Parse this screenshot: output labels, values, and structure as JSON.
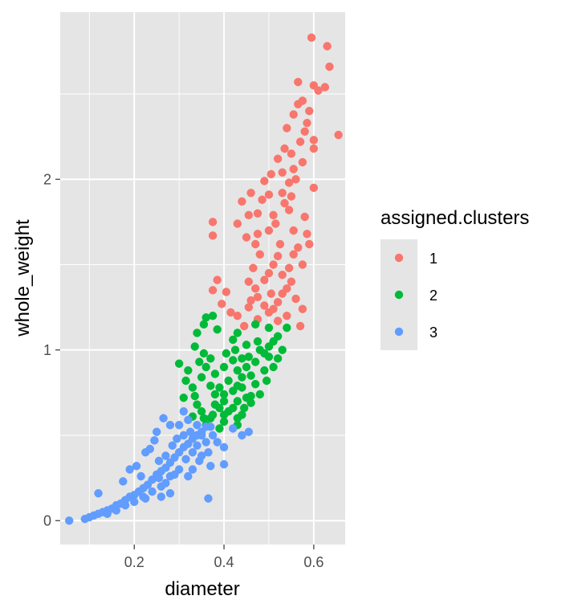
{
  "chart_data": {
    "type": "scatter",
    "xlabel": "diameter",
    "ylabel": "whole_weight",
    "xlim": [
      0.035,
      0.67
    ],
    "ylim": [
      -0.14,
      2.98
    ],
    "x_ticks": [
      0.2,
      0.4,
      0.6
    ],
    "x_tick_labels": [
      "0.2",
      "0.4",
      "0.6"
    ],
    "y_ticks": [
      0,
      1,
      2
    ],
    "y_tick_labels": [
      "0",
      "1",
      "2"
    ],
    "grid": true,
    "panel_background": "#E5E5E5",
    "legend": {
      "title": "assigned.clusters",
      "position": "right"
    },
    "series": [
      {
        "name": "1",
        "color": "#F8766D",
        "points": [
          [
            0.595,
            2.83
          ],
          [
            0.63,
            2.78
          ],
          [
            0.635,
            2.66
          ],
          [
            0.625,
            2.54
          ],
          [
            0.61,
            2.52
          ],
          [
            0.6,
            2.55
          ],
          [
            0.565,
            2.57
          ],
          [
            0.575,
            2.46
          ],
          [
            0.555,
            2.38
          ],
          [
            0.54,
            2.3
          ],
          [
            0.585,
            2.33
          ],
          [
            0.57,
            2.22
          ],
          [
            0.55,
            2.15
          ],
          [
            0.6,
            2.23
          ],
          [
            0.655,
            2.26
          ],
          [
            0.53,
            2.04
          ],
          [
            0.52,
            2.12
          ],
          [
            0.545,
            1.98
          ],
          [
            0.49,
            1.99
          ],
          [
            0.5,
            1.91
          ],
          [
            0.535,
            1.86
          ],
          [
            0.51,
            1.79
          ],
          [
            0.475,
            1.8
          ],
          [
            0.455,
            1.79
          ],
          [
            0.515,
            1.74
          ],
          [
            0.555,
            1.7
          ],
          [
            0.5,
            1.7
          ],
          [
            0.47,
            1.62
          ],
          [
            0.525,
            1.62
          ],
          [
            0.48,
            1.56
          ],
          [
            0.555,
            1.56
          ],
          [
            0.51,
            1.5
          ],
          [
            0.465,
            1.48
          ],
          [
            0.53,
            1.44
          ],
          [
            0.49,
            1.41
          ],
          [
            0.455,
            1.4
          ],
          [
            0.54,
            1.36
          ],
          [
            0.505,
            1.33
          ],
          [
            0.475,
            1.31
          ],
          [
            0.56,
            1.3
          ],
          [
            0.52,
            1.28
          ],
          [
            0.49,
            1.26
          ],
          [
            0.455,
            1.25
          ],
          [
            0.575,
            1.24
          ],
          [
            0.5,
            1.22
          ],
          [
            0.54,
            1.2
          ],
          [
            0.57,
            1.14
          ],
          [
            0.52,
            1.17
          ],
          [
            0.475,
            1.18
          ],
          [
            0.445,
            1.14
          ],
          [
            0.43,
            1.2
          ],
          [
            0.405,
            1.34
          ],
          [
            0.385,
            1.41
          ],
          [
            0.375,
            1.35
          ],
          [
            0.395,
            1.27
          ],
          [
            0.415,
            1.22
          ],
          [
            0.375,
            1.67
          ],
          [
            0.375,
            1.75
          ],
          [
            0.43,
            1.74
          ],
          [
            0.45,
            1.66
          ],
          [
            0.475,
            1.68
          ],
          [
            0.44,
            1.87
          ],
          [
            0.46,
            1.92
          ],
          [
            0.56,
            2.0
          ],
          [
            0.575,
            2.1
          ],
          [
            0.53,
            1.92
          ],
          [
            0.545,
            1.82
          ],
          [
            0.58,
            1.78
          ],
          [
            0.6,
            2.18
          ],
          [
            0.59,
            2.4
          ],
          [
            0.565,
            2.44
          ],
          [
            0.58,
            2.28
          ],
          [
            0.55,
            1.9
          ],
          [
            0.52,
            1.55
          ],
          [
            0.5,
            1.45
          ],
          [
            0.545,
            1.48
          ],
          [
            0.565,
            1.6
          ],
          [
            0.585,
            1.68
          ],
          [
            0.47,
            1.36
          ],
          [
            0.46,
            1.29
          ],
          [
            0.53,
            1.33
          ],
          [
            0.51,
            1.24
          ],
          [
            0.55,
            1.4
          ],
          [
            0.575,
            1.5
          ],
          [
            0.6,
            1.95
          ],
          [
            0.59,
            1.62
          ],
          [
            0.485,
            1.88
          ],
          [
            0.505,
            2.03
          ],
          [
            0.535,
            2.18
          ],
          [
            0.555,
            2.06
          ]
        ]
      },
      {
        "name": "2",
        "color": "#00BA38",
        "points": [
          [
            0.36,
            1.19
          ],
          [
            0.375,
            1.2
          ],
          [
            0.34,
            1.1
          ],
          [
            0.355,
            1.15
          ],
          [
            0.385,
            1.12
          ],
          [
            0.43,
            1.1
          ],
          [
            0.47,
            1.15
          ],
          [
            0.5,
            1.13
          ],
          [
            0.52,
            1.08
          ],
          [
            0.54,
            1.13
          ],
          [
            0.5,
            1.02
          ],
          [
            0.48,
            1.0
          ],
          [
            0.45,
            1.03
          ],
          [
            0.42,
            1.06
          ],
          [
            0.405,
            0.98
          ],
          [
            0.44,
            0.95
          ],
          [
            0.47,
            0.93
          ],
          [
            0.5,
            0.96
          ],
          [
            0.53,
            1.0
          ],
          [
            0.43,
            0.88
          ],
          [
            0.46,
            0.85
          ],
          [
            0.49,
            0.88
          ],
          [
            0.41,
            0.82
          ],
          [
            0.44,
            0.78
          ],
          [
            0.47,
            0.8
          ],
          [
            0.4,
            0.74
          ],
          [
            0.43,
            0.7
          ],
          [
            0.46,
            0.73
          ],
          [
            0.38,
            0.68
          ],
          [
            0.41,
            0.64
          ],
          [
            0.44,
            0.62
          ],
          [
            0.37,
            0.6
          ],
          [
            0.4,
            0.58
          ],
          [
            0.43,
            0.56
          ],
          [
            0.39,
            0.54
          ],
          [
            0.36,
            0.56
          ],
          [
            0.3,
            0.92
          ],
          [
            0.32,
            0.88
          ],
          [
            0.315,
            0.82
          ],
          [
            0.33,
            0.78
          ],
          [
            0.335,
            0.73
          ],
          [
            0.31,
            0.72
          ],
          [
            0.34,
            0.68
          ],
          [
            0.35,
            0.64
          ],
          [
            0.33,
            0.61
          ],
          [
            0.355,
            0.6
          ],
          [
            0.375,
            0.62
          ],
          [
            0.355,
            0.98
          ],
          [
            0.36,
            0.9
          ],
          [
            0.37,
            0.95
          ],
          [
            0.335,
            1.02
          ],
          [
            0.345,
            0.93
          ],
          [
            0.38,
            0.86
          ],
          [
            0.39,
            0.78
          ],
          [
            0.4,
            0.9
          ],
          [
            0.42,
            0.94
          ],
          [
            0.425,
            1.0
          ],
          [
            0.45,
            0.9
          ],
          [
            0.455,
            0.96
          ],
          [
            0.475,
            1.05
          ],
          [
            0.51,
            1.05
          ],
          [
            0.49,
            0.98
          ],
          [
            0.45,
            0.72
          ],
          [
            0.42,
            0.76
          ],
          [
            0.42,
            0.66
          ],
          [
            0.4,
            0.7
          ],
          [
            0.38,
            0.74
          ],
          [
            0.37,
            0.79
          ],
          [
            0.35,
            0.84
          ],
          [
            0.39,
            0.66
          ],
          [
            0.4,
            0.62
          ],
          [
            0.43,
            0.6
          ],
          [
            0.445,
            0.66
          ],
          [
            0.46,
            0.69
          ],
          [
            0.48,
            0.74
          ],
          [
            0.495,
            0.82
          ],
          [
            0.51,
            0.9
          ],
          [
            0.52,
            0.95
          ],
          [
            0.44,
            0.84
          ],
          [
            0.43,
            0.79
          ]
        ]
      },
      {
        "name": "3",
        "color": "#619CFF",
        "points": [
          [
            0.055,
            0.0
          ],
          [
            0.09,
            0.01
          ],
          [
            0.1,
            0.02
          ],
          [
            0.11,
            0.03
          ],
          [
            0.12,
            0.04
          ],
          [
            0.13,
            0.05
          ],
          [
            0.14,
            0.06
          ],
          [
            0.15,
            0.07
          ],
          [
            0.16,
            0.09
          ],
          [
            0.17,
            0.1
          ],
          [
            0.18,
            0.12
          ],
          [
            0.19,
            0.14
          ],
          [
            0.2,
            0.15
          ],
          [
            0.21,
            0.17
          ],
          [
            0.22,
            0.19
          ],
          [
            0.23,
            0.21
          ],
          [
            0.24,
            0.24
          ],
          [
            0.25,
            0.27
          ],
          [
            0.26,
            0.29
          ],
          [
            0.27,
            0.31
          ],
          [
            0.28,
            0.34
          ],
          [
            0.29,
            0.37
          ],
          [
            0.3,
            0.4
          ],
          [
            0.31,
            0.43
          ],
          [
            0.32,
            0.45
          ],
          [
            0.33,
            0.48
          ],
          [
            0.34,
            0.5
          ],
          [
            0.35,
            0.52
          ],
          [
            0.36,
            0.55
          ],
          [
            0.37,
            0.55
          ],
          [
            0.12,
            0.16
          ],
          [
            0.175,
            0.23
          ],
          [
            0.19,
            0.3
          ],
          [
            0.205,
            0.32
          ],
          [
            0.215,
            0.26
          ],
          [
            0.225,
            0.4
          ],
          [
            0.235,
            0.42
          ],
          [
            0.245,
            0.47
          ],
          [
            0.25,
            0.52
          ],
          [
            0.265,
            0.6
          ],
          [
            0.28,
            0.56
          ],
          [
            0.3,
            0.56
          ],
          [
            0.31,
            0.64
          ],
          [
            0.32,
            0.59
          ],
          [
            0.34,
            0.56
          ],
          [
            0.35,
            0.5
          ],
          [
            0.33,
            0.4
          ],
          [
            0.3,
            0.3
          ],
          [
            0.28,
            0.26
          ],
          [
            0.27,
            0.22
          ],
          [
            0.26,
            0.2
          ],
          [
            0.24,
            0.17
          ],
          [
            0.22,
            0.14
          ],
          [
            0.2,
            0.11
          ],
          [
            0.18,
            0.09
          ],
          [
            0.16,
            0.06
          ],
          [
            0.14,
            0.04
          ],
          [
            0.26,
            0.14
          ],
          [
            0.28,
            0.16
          ],
          [
            0.225,
            0.13
          ],
          [
            0.255,
            0.35
          ],
          [
            0.27,
            0.38
          ],
          [
            0.285,
            0.44
          ],
          [
            0.295,
            0.48
          ],
          [
            0.36,
            0.46
          ],
          [
            0.37,
            0.32
          ],
          [
            0.365,
            0.13
          ],
          [
            0.4,
            0.43
          ],
          [
            0.385,
            0.46
          ],
          [
            0.4,
            0.33
          ],
          [
            0.365,
            0.4
          ],
          [
            0.345,
            0.35
          ],
          [
            0.375,
            0.5
          ],
          [
            0.33,
            0.3
          ],
          [
            0.315,
            0.36
          ],
          [
            0.29,
            0.27
          ],
          [
            0.32,
            0.26
          ],
          [
            0.255,
            0.25
          ],
          [
            0.455,
            0.52
          ],
          [
            0.44,
            0.5
          ],
          [
            0.42,
            0.54
          ],
          [
            0.31,
            0.5
          ],
          [
            0.325,
            0.52
          ],
          [
            0.34,
            0.44
          ],
          [
            0.35,
            0.38
          ]
        ]
      }
    ]
  }
}
